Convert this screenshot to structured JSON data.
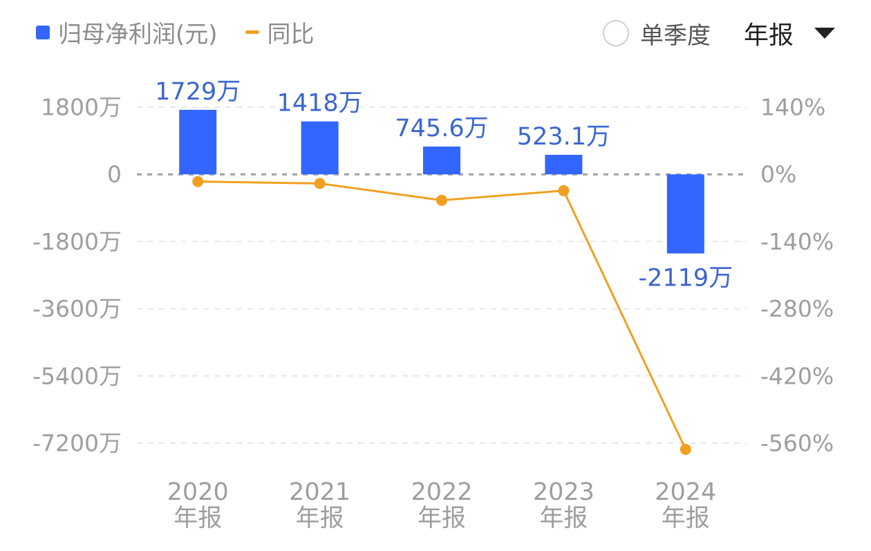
{
  "legend": {
    "bar_label": "归母净利润(元)",
    "line_label": "同比"
  },
  "controls": {
    "quarter_label": "单季度",
    "period_label": "年报"
  },
  "colors": {
    "bar": "#3366ff",
    "line": "#f0a020",
    "bar_label_text": "#3a66d0",
    "axis_text": "#9e9e9e",
    "grid": "#e6e6e6",
    "zero_line": "#a0a0a0"
  },
  "chart_data": {
    "type": "bar",
    "categories": [
      "2020\n年报",
      "2021\n年报",
      "2022\n年报",
      "2023\n年报",
      "2024\n年报"
    ],
    "series": [
      {
        "name": "归母净利润(元)",
        "type": "bar",
        "axis": "left",
        "values": [
          1729,
          1418,
          745.6,
          523.1,
          -2119
        ],
        "unit": "万",
        "value_labels": [
          "1729万",
          "1418万",
          "745.6万",
          "523.1万",
          "-2119万"
        ]
      },
      {
        "name": "同比",
        "type": "line",
        "axis": "right",
        "values": [
          -15,
          -19,
          -54,
          -34,
          -573
        ],
        "unit": "%"
      }
    ],
    "y_left": {
      "ticks": [
        1800,
        0,
        -1800,
        -3600,
        -5400,
        -7200
      ],
      "tick_labels": [
        "1800万",
        "0",
        "-1800万",
        "-3600万",
        "-5400万",
        "-7200万"
      ],
      "ylim": [
        -7200,
        1800
      ]
    },
    "y_right": {
      "ticks": [
        140,
        0,
        -140,
        -280,
        -420,
        -560
      ],
      "tick_labels": [
        "140%",
        "0%",
        "-140%",
        "-280%",
        "-420%",
        "-560%"
      ],
      "ylim": [
        -560,
        140
      ]
    },
    "grid": true,
    "legend_position": "top-left"
  }
}
